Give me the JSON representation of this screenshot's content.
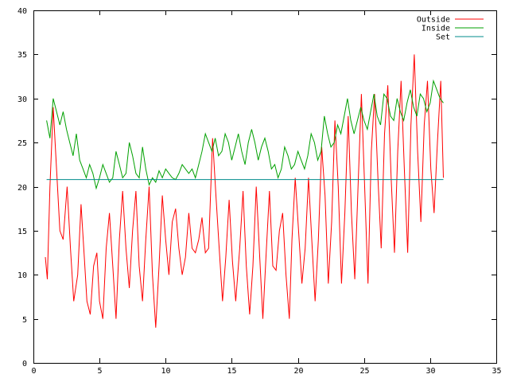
{
  "chart_data": {
    "type": "line",
    "title": "",
    "xlabel": "",
    "ylabel": "",
    "xlim": [
      0,
      35
    ],
    "ylim": [
      0,
      40
    ],
    "x_ticks": [
      0,
      5,
      10,
      15,
      20,
      25,
      30,
      35
    ],
    "y_ticks": [
      0,
      5,
      10,
      15,
      20,
      25,
      30,
      35,
      40
    ],
    "grid": false,
    "legend_position": "top-right",
    "series": [
      {
        "name": "Outside",
        "color": "#ff0000",
        "x": [
          0.9,
          1.05,
          1.25,
          1.5,
          1.75,
          2.0,
          2.25,
          2.55,
          2.8,
          3.05,
          3.35,
          3.6,
          3.85,
          4.05,
          4.3,
          4.55,
          4.8,
          5.0,
          5.25,
          5.5,
          5.75,
          6.0,
          6.25,
          6.5,
          6.75,
          7.0,
          7.25,
          7.5,
          7.75,
          8.0,
          8.25,
          8.5,
          8.75,
          9.0,
          9.25,
          9.5,
          9.75,
          10.0,
          10.25,
          10.5,
          10.75,
          11.0,
          11.25,
          11.5,
          11.75,
          12.0,
          12.25,
          12.5,
          12.75,
          13.0,
          13.25,
          13.55,
          13.8,
          14.05,
          14.3,
          14.55,
          14.8,
          15.05,
          15.3,
          15.6,
          15.85,
          16.1,
          16.35,
          16.6,
          16.85,
          17.1,
          17.35,
          17.6,
          17.85,
          18.1,
          18.35,
          18.6,
          18.85,
          19.1,
          19.35,
          19.55,
          19.8,
          20.05,
          20.3,
          20.55,
          20.8,
          21.05,
          21.3,
          21.55,
          21.8,
          22.05,
          22.3,
          22.55,
          22.8,
          23.05,
          23.3,
          23.55,
          23.8,
          24.05,
          24.3,
          24.55,
          24.8,
          25.05,
          25.3,
          25.55,
          25.8,
          26.05,
          26.3,
          26.55,
          26.8,
          27.05,
          27.3,
          27.55,
          27.8,
          28.05,
          28.3,
          28.55,
          28.8,
          29.05,
          29.3,
          29.55,
          29.8,
          30.05,
          30.3,
          30.55,
          30.8,
          31.0
        ],
        "y": [
          12.0,
          9.5,
          20.0,
          29.0,
          22.0,
          15.0,
          14.0,
          20.0,
          13.0,
          7.0,
          10.0,
          18.0,
          12.0,
          7.0,
          5.5,
          11.0,
          12.5,
          7.0,
          5.0,
          13.0,
          17.0,
          11.0,
          5.0,
          14.0,
          19.5,
          13.0,
          8.5,
          15.0,
          19.5,
          11.0,
          7.0,
          14.0,
          20.0,
          10.0,
          4.0,
          11.0,
          19.0,
          14.0,
          10.0,
          16.0,
          17.5,
          13.0,
          10.0,
          12.0,
          17.0,
          13.0,
          12.5,
          14.0,
          16.5,
          12.5,
          13.0,
          25.5,
          19.0,
          13.0,
          7.0,
          12.0,
          18.5,
          11.5,
          7.0,
          13.0,
          19.5,
          11.0,
          5.5,
          11.0,
          20.0,
          12.5,
          5.0,
          12.5,
          19.5,
          11.0,
          10.5,
          15.0,
          17.0,
          10.0,
          5.0,
          14.0,
          21.0,
          15.0,
          9.0,
          13.0,
          21.0,
          14.0,
          7.0,
          14.0,
          24.5,
          19.0,
          9.0,
          16.0,
          27.5,
          20.0,
          9.0,
          17.0,
          28.0,
          17.0,
          9.5,
          20.0,
          30.5,
          20.0,
          9.0,
          24.0,
          30.5,
          21.0,
          13.0,
          26.0,
          31.5,
          21.0,
          12.5,
          24.0,
          32.0,
          22.0,
          12.5,
          27.0,
          35.0,
          24.0,
          16.0,
          27.0,
          32.0,
          22.0,
          17.0,
          25.0,
          32.0,
          21.0
        ]
      },
      {
        "name": "Inside",
        "color": "#00a000",
        "x": [
          1.0,
          1.25,
          1.5,
          1.75,
          2.0,
          2.25,
          2.5,
          2.75,
          3.0,
          3.25,
          3.5,
          3.75,
          4.0,
          4.25,
          4.5,
          4.75,
          5.0,
          5.25,
          5.5,
          5.75,
          6.0,
          6.25,
          6.5,
          6.75,
          7.0,
          7.25,
          7.5,
          7.75,
          8.0,
          8.25,
          8.5,
          8.75,
          9.0,
          9.25,
          9.5,
          9.75,
          10.0,
          10.25,
          10.5,
          10.75,
          11.0,
          11.25,
          11.5,
          11.75,
          12.0,
          12.25,
          12.5,
          12.75,
          13.0,
          13.25,
          13.5,
          13.75,
          14.0,
          14.25,
          14.5,
          14.75,
          15.0,
          15.25,
          15.5,
          15.75,
          16.0,
          16.25,
          16.5,
          16.75,
          17.0,
          17.25,
          17.5,
          17.75,
          18.0,
          18.25,
          18.5,
          18.75,
          19.0,
          19.25,
          19.5,
          19.75,
          20.0,
          20.25,
          20.5,
          20.75,
          21.0,
          21.25,
          21.5,
          21.75,
          22.0,
          22.25,
          22.5,
          22.75,
          23.0,
          23.25,
          23.5,
          23.75,
          24.0,
          24.25,
          24.5,
          24.75,
          25.0,
          25.25,
          25.5,
          25.75,
          26.0,
          26.25,
          26.5,
          26.75,
          27.0,
          27.25,
          27.5,
          27.75,
          28.0,
          28.25,
          28.5,
          28.75,
          29.0,
          29.25,
          29.5,
          29.75,
          30.0,
          30.25,
          30.5,
          30.75,
          31.0
        ],
        "y": [
          27.5,
          25.5,
          30.0,
          28.5,
          27.0,
          28.5,
          26.5,
          25.0,
          23.5,
          26.0,
          23.0,
          22.0,
          21.0,
          22.5,
          21.5,
          19.8,
          21.0,
          22.5,
          21.5,
          20.5,
          21.0,
          24.0,
          22.5,
          21.0,
          21.5,
          25.0,
          23.5,
          21.5,
          21.0,
          24.5,
          22.0,
          20.2,
          21.0,
          20.5,
          21.8,
          21.0,
          22.0,
          21.5,
          21.0,
          20.8,
          21.5,
          22.5,
          22.0,
          21.5,
          22.0,
          21.0,
          22.5,
          24.0,
          26.0,
          25.0,
          24.0,
          25.5,
          23.5,
          24.0,
          26.0,
          25.0,
          23.0,
          24.5,
          26.0,
          24.0,
          22.5,
          25.0,
          26.5,
          25.0,
          23.0,
          24.5,
          25.5,
          24.0,
          22.0,
          22.5,
          21.0,
          22.0,
          24.5,
          23.5,
          22.0,
          22.5,
          24.0,
          23.0,
          22.0,
          23.5,
          26.0,
          25.0,
          23.0,
          24.0,
          28.0,
          26.0,
          24.5,
          25.0,
          27.0,
          26.0,
          28.0,
          30.0,
          27.5,
          26.0,
          27.5,
          29.0,
          27.5,
          26.5,
          28.5,
          30.5,
          28.0,
          27.0,
          30.5,
          30.0,
          28.0,
          27.5,
          30.0,
          28.5,
          27.5,
          29.5,
          31.0,
          29.0,
          28.0,
          30.5,
          30.0,
          28.5,
          29.5,
          32.0,
          31.0,
          30.0,
          29.5
        ]
      },
      {
        "name": "Set",
        "color": "#008b8b",
        "x": [
          1.0,
          31.0
        ],
        "y": [
          20.8,
          20.8
        ]
      }
    ]
  }
}
